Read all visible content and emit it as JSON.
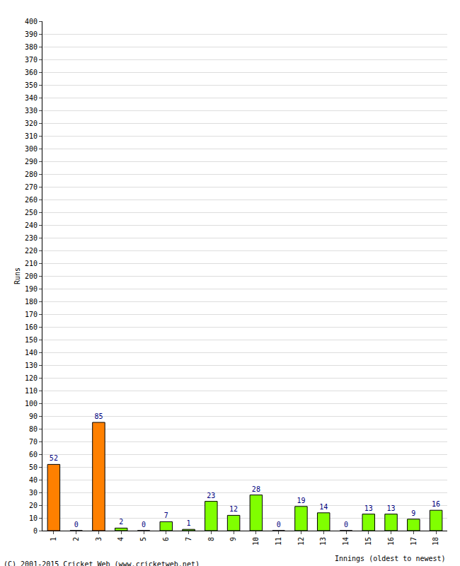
{
  "chart_data": {
    "type": "bar",
    "x_label": "Innings (oldest to newest)",
    "y_label": "Runs",
    "annotations": [
      "(C) 2001-2015 Cricket Web (www.cricketweb.net)"
    ],
    "categories": [
      "1",
      "2",
      "3",
      "4",
      "5",
      "6",
      "7",
      "8",
      "9",
      "10",
      "11",
      "12",
      "13",
      "14",
      "15",
      "16",
      "17",
      "18"
    ],
    "values": [
      52,
      0,
      85,
      2,
      0,
      7,
      1,
      23,
      12,
      28,
      0,
      19,
      14,
      0,
      13,
      13,
      9,
      16
    ],
    "colors": [
      "#ff8000",
      "#ff8000",
      "#ff8000",
      "#80ff00",
      "#80ff00",
      "#80ff00",
      "#80ff00",
      "#80ff00",
      "#80ff00",
      "#80ff00",
      "#80ff00",
      "#80ff00",
      "#80ff00",
      "#80ff00",
      "#80ff00",
      "#80ff00",
      "#80ff00",
      "#80ff00"
    ],
    "ylim": [
      0,
      400
    ],
    "yticks": [
      0,
      10,
      20,
      30,
      40,
      50,
      60,
      70,
      80,
      90,
      100,
      110,
      120,
      130,
      140,
      150,
      160,
      170,
      180,
      190,
      200,
      210,
      220,
      230,
      240,
      250,
      260,
      270,
      280,
      290,
      300,
      310,
      320,
      330,
      340,
      350,
      360,
      370,
      380,
      390,
      400
    ],
    "grid": true,
    "data_labels": true
  }
}
